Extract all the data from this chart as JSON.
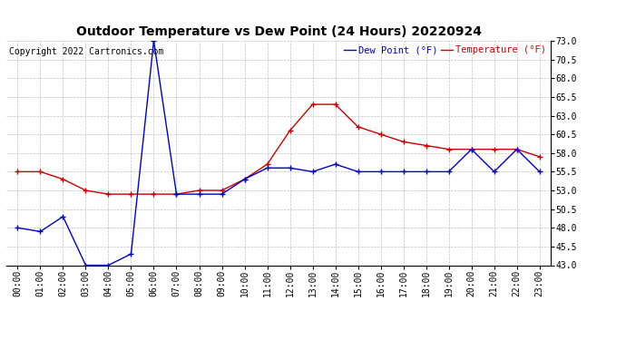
{
  "title": "Outdoor Temperature vs Dew Point (24 Hours) 20220924",
  "copyright": "Copyright 2022 Cartronics.com",
  "legend_dew": "Dew Point (°F)",
  "legend_temp": "Temperature (°F)",
  "x_labels": [
    "00:00",
    "01:00",
    "02:00",
    "03:00",
    "04:00",
    "05:00",
    "06:00",
    "07:00",
    "08:00",
    "09:00",
    "10:00",
    "11:00",
    "12:00",
    "13:00",
    "14:00",
    "15:00",
    "16:00",
    "17:00",
    "18:00",
    "19:00",
    "20:00",
    "21:00",
    "22:00",
    "23:00"
  ],
  "temperature": [
    55.5,
    55.5,
    54.5,
    53.0,
    52.5,
    52.5,
    52.5,
    52.5,
    53.0,
    53.0,
    54.5,
    56.5,
    61.0,
    64.5,
    64.5,
    61.5,
    60.5,
    59.5,
    59.0,
    58.5,
    58.5,
    58.5,
    58.5,
    57.5
  ],
  "dew_point": [
    48.0,
    47.5,
    49.5,
    43.0,
    43.0,
    44.5,
    73.0,
    52.5,
    52.5,
    52.5,
    54.5,
    56.0,
    56.0,
    55.5,
    56.5,
    55.5,
    55.5,
    55.5,
    55.5,
    55.5,
    58.5,
    55.5,
    58.5,
    55.5
  ],
  "ylim": [
    43.0,
    73.0
  ],
  "yticks": [
    43.0,
    45.5,
    48.0,
    50.5,
    53.0,
    55.5,
    58.0,
    60.5,
    63.0,
    65.5,
    68.0,
    70.5,
    73.0
  ],
  "temp_color": "#cc0000",
  "dew_color": "#0000cc",
  "bg_color": "#ffffff",
  "grid_color": "#b0b0b0",
  "title_fontsize": 10,
  "axis_fontsize": 7,
  "legend_fontsize": 7.5,
  "copyright_fontsize": 7
}
